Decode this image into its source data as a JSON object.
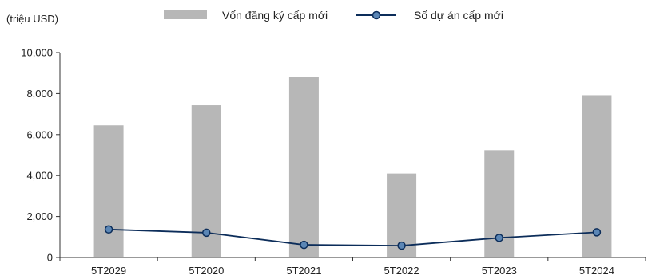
{
  "chart_data": {
    "type": "bar",
    "unit_label": "(triệu USD)",
    "categories": [
      "5T2029",
      "5T2020",
      "5T2021",
      "5T2022",
      "5T2023",
      "5T2024"
    ],
    "series": [
      {
        "name": "Vốn đăng ký cấp mới",
        "type": "bar",
        "color": "#b7b7b7",
        "values": [
          6450,
          7430,
          8830,
          4100,
          5240,
          7920
        ]
      },
      {
        "name": "Số dự án cấp mới",
        "type": "line",
        "color": "#0c2d5a",
        "marker_fill": "#5b86b5",
        "values": [
          1370,
          1210,
          620,
          580,
          960,
          1230
        ]
      }
    ],
    "ylim": [
      0,
      10000
    ],
    "yticks": [
      "0",
      "2,000",
      "4,000",
      "6,000",
      "8,000",
      "10,000"
    ],
    "ytick_values": [
      0,
      2000,
      4000,
      6000,
      8000,
      10000
    ],
    "grid": false,
    "legend_position": "top-center"
  }
}
